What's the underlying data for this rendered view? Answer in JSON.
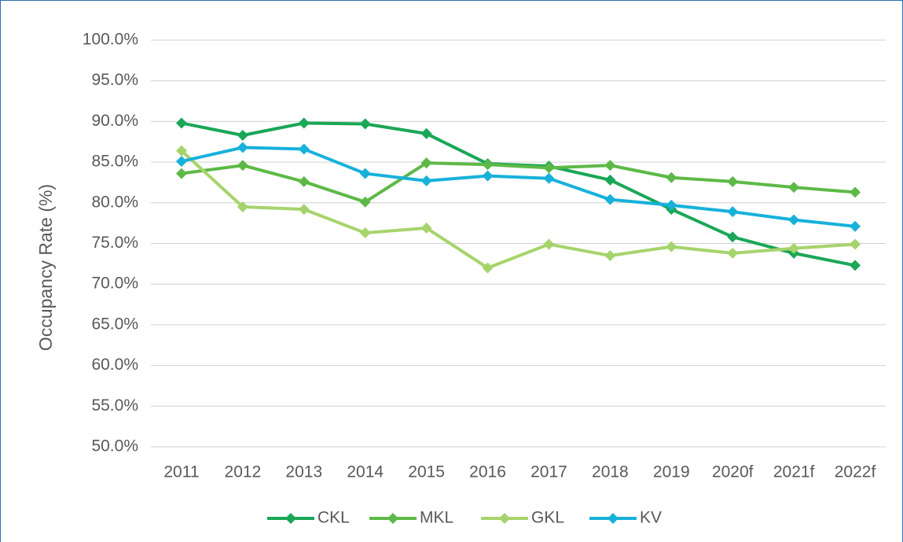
{
  "chart_data": {
    "type": "line",
    "y_label": "Occupancy Rate (%)",
    "categories": [
      "2011",
      "2012",
      "2013",
      "2014",
      "2015",
      "2016",
      "2017",
      "2018",
      "2019",
      "2020f",
      "2021f",
      "2022f"
    ],
    "series": [
      {
        "name": "CKL",
        "color": "#1aa757",
        "values": [
          89.8,
          88.3,
          89.8,
          89.7,
          88.5,
          84.8,
          84.5,
          82.8,
          79.2,
          75.8,
          73.8,
          72.3
        ]
      },
      {
        "name": "MKL",
        "color": "#5db947",
        "values": [
          83.6,
          84.6,
          82.6,
          80.1,
          84.9,
          84.7,
          84.3,
          84.6,
          83.1,
          82.6,
          81.9,
          81.3
        ]
      },
      {
        "name": "GKL",
        "color": "#a6d46c",
        "values": [
          86.4,
          79.5,
          79.2,
          76.3,
          76.9,
          72.0,
          74.9,
          73.5,
          74.6,
          73.8,
          74.4,
          74.9
        ]
      },
      {
        "name": "KV",
        "color": "#17b1da",
        "values": [
          85.1,
          86.8,
          86.6,
          83.6,
          82.7,
          83.3,
          83.0,
          80.4,
          79.7,
          78.9,
          77.9,
          77.1
        ]
      }
    ],
    "ylim": [
      50,
      100
    ],
    "yticks": [
      {
        "value": 50,
        "label": "50.0%"
      },
      {
        "value": 55,
        "label": "55.0%"
      },
      {
        "value": 60,
        "label": "60.0%"
      },
      {
        "value": 65,
        "label": "65.0%"
      },
      {
        "value": 70,
        "label": "70.0%"
      },
      {
        "value": 75,
        "label": "75.0%"
      },
      {
        "value": 80,
        "label": "80.0%"
      },
      {
        "value": 85,
        "label": "85.0%"
      },
      {
        "value": 90,
        "label": "90.0%"
      },
      {
        "value": 95,
        "label": "95.0%"
      },
      {
        "value": 100,
        "label": "100.0%"
      }
    ],
    "grid": true,
    "legend": "bottom"
  }
}
